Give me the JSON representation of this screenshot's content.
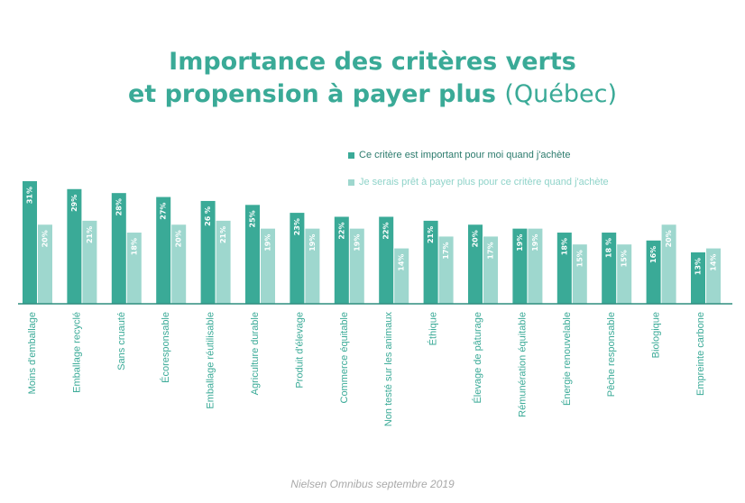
{
  "title": {
    "line1": "Importance des critères verts",
    "line2_bold": "et propension à payer plus",
    "line2_light": "(Québec)"
  },
  "source": "Nielsen Omnibus septembre 2019",
  "colors": {
    "title": "#3aaa97",
    "series1": "#3aaa97",
    "series2": "#9ed7ce",
    "axis": "#2e8d7e"
  },
  "chart_data": {
    "type": "bar",
    "title": "Importance des critères verts et propension à payer plus (Québec)",
    "categories": [
      "Moins d'emballage",
      "Emballage recyclé",
      "Sans cruauté",
      "Écoresponsable",
      "Emballage réutilisable",
      "Agriculture durable",
      "Produit d'élevage",
      "Commerce équitable",
      "Non testé sur les animaux",
      "Éthique",
      "Élevage de pâturage",
      "Rémunération équitable",
      "Énergie renouvelable",
      "Pêche responsable",
      "Biologique",
      "Empreinte carbone"
    ],
    "series": [
      {
        "name": "Ce critère est important pour moi quand j'achète",
        "values": [
          31,
          29,
          28,
          27,
          26,
          25,
          23,
          22,
          22,
          21,
          20,
          19,
          18,
          18,
          16,
          13
        ],
        "labels": [
          "31%",
          "29%",
          "28%",
          "27%",
          "26 %",
          "25%",
          "23%",
          "22%",
          "22%",
          "21%",
          "20%",
          "19%",
          "18%",
          "18 %",
          "16%",
          "13%"
        ]
      },
      {
        "name": "Je serais prêt à payer plus pour ce critère quand j'achète",
        "values": [
          20,
          21,
          18,
          20,
          21,
          19,
          19,
          19,
          14,
          17,
          17,
          19,
          15,
          15,
          20,
          14
        ],
        "labels": [
          "20%",
          "21%",
          "18%",
          "20%",
          "21%",
          "19%",
          "19%",
          "19%",
          "14%",
          "17%",
          "17%",
          "19%",
          "15%",
          "15%",
          "20%",
          "14%"
        ]
      }
    ],
    "ylim": [
      0,
      31
    ],
    "grid": false,
    "legend": "top-right"
  }
}
